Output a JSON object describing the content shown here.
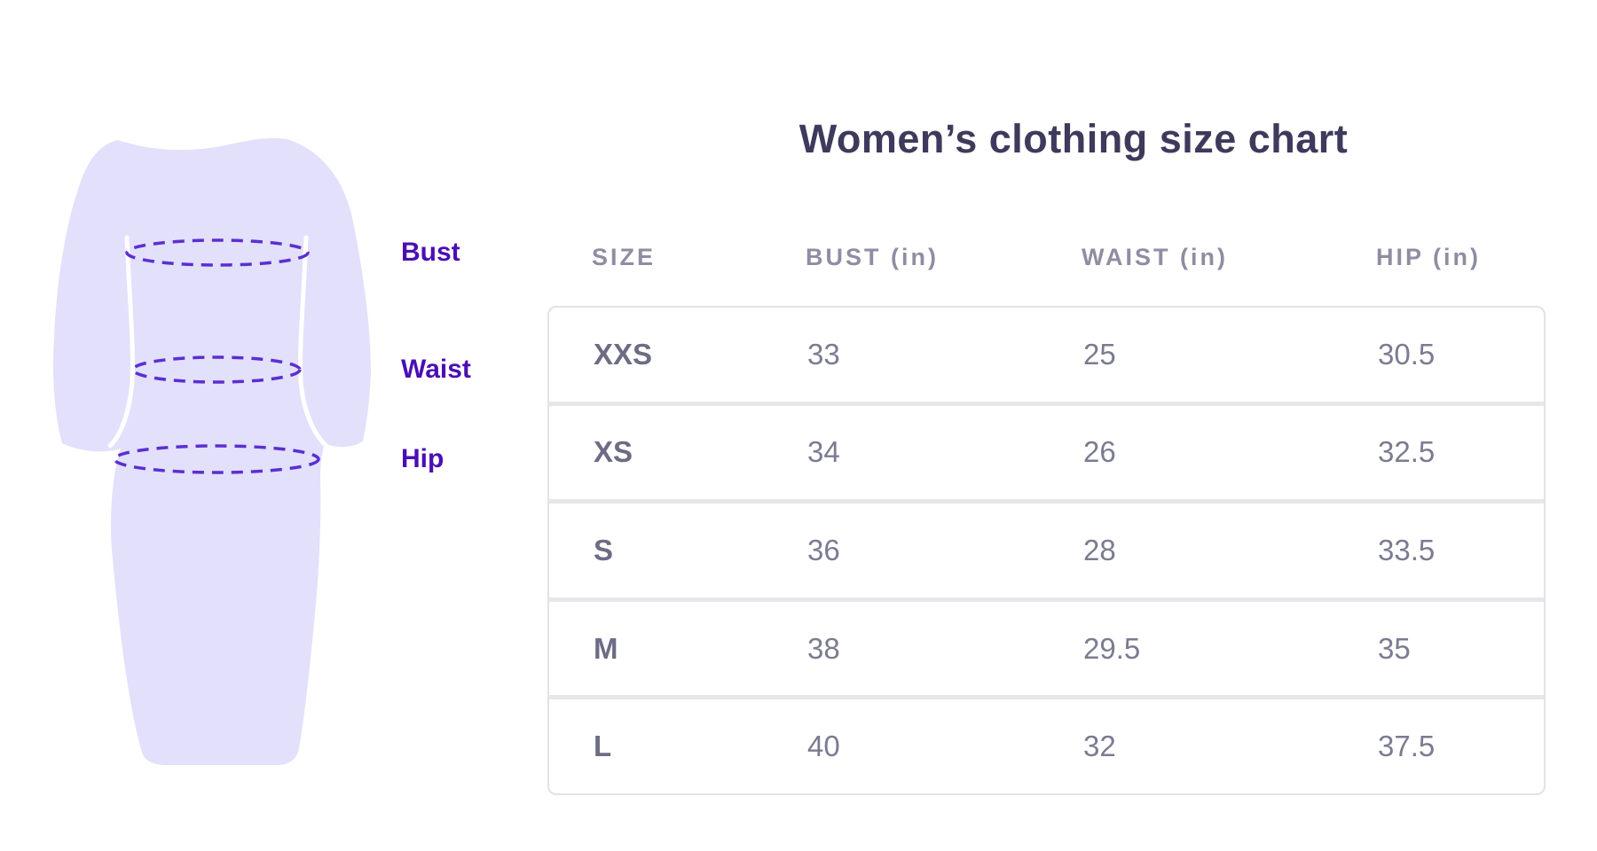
{
  "title": "Women’s clothing size chart",
  "figure": {
    "name": "dress-measurement-illustration",
    "measurement_labels": [
      {
        "id": "bust",
        "text": "Bust"
      },
      {
        "id": "waist",
        "text": "Waist"
      },
      {
        "id": "hip",
        "text": "Hip"
      }
    ],
    "colors": {
      "dress_fill": "#e3e0fb",
      "dashed_measure_line": "#5b2fd0",
      "label_text": "#4a0fb3"
    }
  },
  "chart_data": {
    "type": "table",
    "title": "Women’s clothing size chart",
    "columns": [
      "SIZE",
      "BUST (in)",
      "WAIST (in)",
      "HIP (in)"
    ],
    "rows": [
      [
        "XXS",
        "33",
        "25",
        "30.5"
      ],
      [
        "XS",
        "34",
        "26",
        "32.5"
      ],
      [
        "S",
        "36",
        "28",
        "33.5"
      ],
      [
        "M",
        "38",
        "29.5",
        "35"
      ],
      [
        "L",
        "40",
        "32",
        "37.5"
      ]
    ]
  },
  "colors": {
    "title_text": "#3e3a5c",
    "header_text": "#8e8ea2",
    "cell_text": "#7b7b91",
    "size_cell_text": "#6c6c84",
    "table_border": "#e3e2e7"
  }
}
